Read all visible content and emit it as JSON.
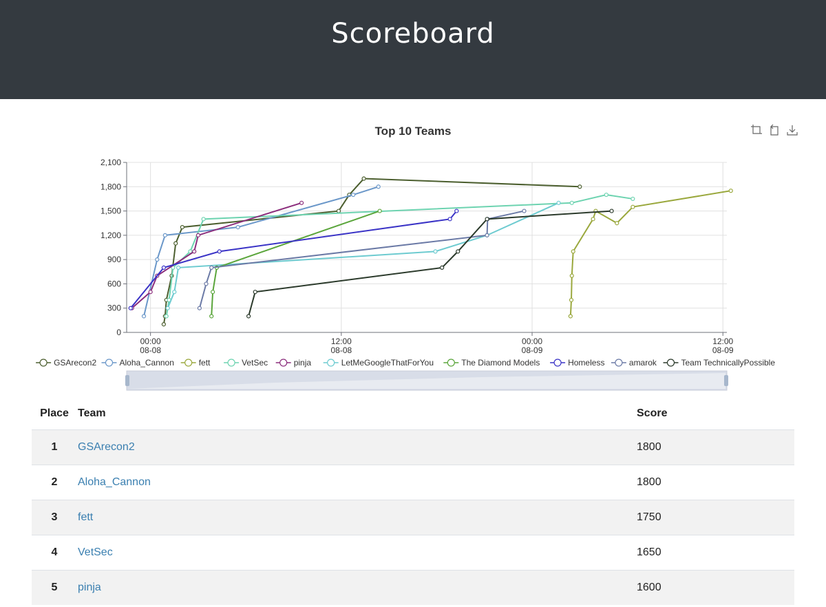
{
  "header": {
    "title": "Scoreboard"
  },
  "chart_data": {
    "type": "line",
    "title": "Top 10 Teams",
    "x_axis": {
      "type": "time",
      "start": "2019-08-07T22:30",
      "end": "2019-08-09T12:15",
      "ticks": [
        {
          "time": "2019-08-08T00:00",
          "label": [
            "00:00",
            "08-08"
          ]
        },
        {
          "time": "2019-08-08T12:00",
          "label": [
            "12:00",
            "08-08"
          ]
        },
        {
          "time": "2019-08-09T00:00",
          "label": [
            "00:00",
            "08-09"
          ]
        },
        {
          "time": "2019-08-09T12:00",
          "label": [
            "12:00",
            "08-09"
          ]
        }
      ]
    },
    "y_axis": {
      "min": 0,
      "max": 2100,
      "ticks": [
        "0",
        "300",
        "600",
        "900",
        "1,200",
        "1,500",
        "1,800",
        "2,100"
      ]
    },
    "grid": true,
    "legend_position": "bottom",
    "series": [
      {
        "name": "GSArecon2",
        "color": "#4b5e2e",
        "points": [
          [
            "2019-08-08T00:50",
            100
          ],
          [
            "2019-08-08T00:55",
            200
          ],
          [
            "2019-08-08T01:00",
            400
          ],
          [
            "2019-08-08T01:20",
            700
          ],
          [
            "2019-08-08T01:35",
            1100
          ],
          [
            "2019-08-08T02:00",
            1300
          ],
          [
            "2019-08-08T11:50",
            1500
          ],
          [
            "2019-08-08T12:30",
            1700
          ],
          [
            "2019-08-08T13:25",
            1900
          ],
          [
            "2019-08-09T03:00",
            1800
          ]
        ]
      },
      {
        "name": "Aloha_Cannon",
        "color": "#6a97c9",
        "points": [
          [
            "2019-08-07T23:35",
            200
          ],
          [
            "2019-08-08T00:25",
            900
          ],
          [
            "2019-08-08T00:55",
            1200
          ],
          [
            "2019-08-08T05:30",
            1300
          ],
          [
            "2019-08-08T12:45",
            1700
          ],
          [
            "2019-08-08T14:20",
            1800
          ]
        ]
      },
      {
        "name": "fett",
        "color": "#9aa83d",
        "points": [
          [
            "2019-08-09T02:25",
            200
          ],
          [
            "2019-08-09T02:28",
            400
          ],
          [
            "2019-08-09T02:30",
            700
          ],
          [
            "2019-08-09T02:35",
            1000
          ],
          [
            "2019-08-09T03:50",
            1400
          ],
          [
            "2019-08-09T04:00",
            1500
          ],
          [
            "2019-08-09T05:20",
            1350
          ],
          [
            "2019-08-09T06:20",
            1550
          ],
          [
            "2019-08-09T12:30",
            1750
          ]
        ]
      },
      {
        "name": "VetSec",
        "color": "#6dd3b0",
        "points": [
          [
            "2019-08-08T01:00",
            200
          ],
          [
            "2019-08-08T01:10",
            400
          ],
          [
            "2019-08-08T01:25",
            800
          ],
          [
            "2019-08-08T02:30",
            1000
          ],
          [
            "2019-08-08T03:20",
            1400
          ],
          [
            "2019-08-09T02:30",
            1600
          ],
          [
            "2019-08-09T04:40",
            1700
          ],
          [
            "2019-08-09T06:20",
            1650
          ]
        ]
      },
      {
        "name": "pinja",
        "color": "#8b2d7c",
        "points": [
          [
            "2019-08-07T22:50",
            300
          ],
          [
            "2019-08-08T00:00",
            500
          ],
          [
            "2019-08-08T00:25",
            700
          ],
          [
            "2019-08-08T02:45",
            1000
          ],
          [
            "2019-08-08T03:00",
            1200
          ],
          [
            "2019-08-08T09:30",
            1600
          ]
        ]
      },
      {
        "name": "LetMeGoogleThatForYou",
        "color": "#6dcbd0",
        "points": [
          [
            "2019-08-08T01:05",
            300
          ],
          [
            "2019-08-08T01:30",
            500
          ],
          [
            "2019-08-08T01:45",
            800
          ],
          [
            "2019-08-08T17:55",
            1000
          ],
          [
            "2019-08-08T21:10",
            1200
          ],
          [
            "2019-08-09T01:40",
            1600
          ]
        ]
      },
      {
        "name": "The Diamond Models",
        "color": "#5aa53b",
        "points": [
          [
            "2019-08-08T03:50",
            200
          ],
          [
            "2019-08-08T03:55",
            500
          ],
          [
            "2019-08-08T04:10",
            800
          ],
          [
            "2019-08-08T14:25",
            1500
          ]
        ]
      },
      {
        "name": "Homeless",
        "color": "#3a33c6",
        "points": [
          [
            "2019-08-07T22:45",
            300
          ],
          [
            "2019-08-08T00:50",
            800
          ],
          [
            "2019-08-08T04:20",
            1000
          ],
          [
            "2019-08-08T18:50",
            1400
          ],
          [
            "2019-08-08T19:15",
            1500
          ]
        ]
      },
      {
        "name": "amarok",
        "color": "#6b7aa6",
        "points": [
          [
            "2019-08-08T03:05",
            300
          ],
          [
            "2019-08-08T03:30",
            600
          ],
          [
            "2019-08-08T03:50",
            800
          ],
          [
            "2019-08-08T21:10",
            1200
          ],
          [
            "2019-08-08T21:12",
            1400
          ],
          [
            "2019-08-08T23:30",
            1500
          ]
        ]
      },
      {
        "name": "Team TechnicallyPossible",
        "color": "#2b3a2b",
        "points": [
          [
            "2019-08-08T06:10",
            200
          ],
          [
            "2019-08-08T06:35",
            500
          ],
          [
            "2019-08-08T18:20",
            800
          ],
          [
            "2019-08-08T19:20",
            1000
          ],
          [
            "2019-08-08T21:10",
            1400
          ],
          [
            "2019-08-09T05:00",
            1500
          ]
        ]
      }
    ]
  },
  "table": {
    "headers": {
      "place": "Place",
      "team": "Team",
      "score": "Score"
    },
    "rows": [
      {
        "place": "1",
        "team": "GSArecon2",
        "score": "1800"
      },
      {
        "place": "2",
        "team": "Aloha_Cannon",
        "score": "1800"
      },
      {
        "place": "3",
        "team": "fett",
        "score": "1750"
      },
      {
        "place": "4",
        "team": "VetSec",
        "score": "1650"
      },
      {
        "place": "5",
        "team": "pinja",
        "score": "1600"
      }
    ]
  },
  "toolbox": {
    "icons": [
      "zoom-icon",
      "zoom-reset-icon",
      "download-icon"
    ]
  }
}
